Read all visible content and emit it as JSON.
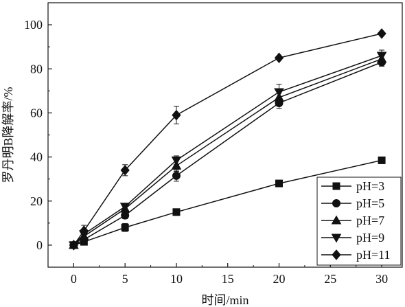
{
  "chart_data": {
    "type": "line",
    "title": "",
    "xlabel": "时间/min",
    "ylabel": "罗丹明B降解率/%",
    "xlim": [
      -2.5,
      32
    ],
    "ylim": [
      -10,
      110
    ],
    "xticks": [
      0,
      5,
      10,
      15,
      20,
      25,
      30
    ],
    "yticks": [
      0,
      20,
      40,
      60,
      80,
      100
    ],
    "grid": false,
    "legend_position": "bottom-right",
    "x": [
      0,
      1,
      5,
      10,
      20,
      30
    ],
    "series": [
      {
        "name": "pH=3",
        "marker": "square",
        "values": [
          0,
          1.5,
          8,
          15,
          28,
          38.5
        ],
        "errors": [
          0,
          0.8,
          1.8,
          1.5,
          0.8,
          1.5
        ]
      },
      {
        "name": "pH=5",
        "marker": "circle",
        "values": [
          0,
          2.5,
          13.5,
          31.5,
          64.5,
          83
        ],
        "errors": [
          0,
          0.8,
          1.5,
          2.5,
          2.5,
          1.8
        ]
      },
      {
        "name": "pH=7",
        "marker": "triangle-up",
        "values": [
          0,
          4,
          16.5,
          36,
          67,
          84.5
        ],
        "errors": [
          0,
          1,
          1.5,
          2.5,
          2.5,
          2
        ]
      },
      {
        "name": "pH=9",
        "marker": "triangle-down",
        "values": [
          0,
          5,
          17.5,
          38.5,
          69.5,
          86
        ],
        "errors": [
          0,
          1.5,
          1.5,
          2,
          3.5,
          2.5
        ]
      },
      {
        "name": "pH=11",
        "marker": "diamond",
        "values": [
          0,
          6.5,
          34,
          59,
          85,
          96
        ],
        "errors": [
          0,
          2.5,
          2.5,
          4,
          0.5,
          0.5
        ]
      }
    ]
  }
}
